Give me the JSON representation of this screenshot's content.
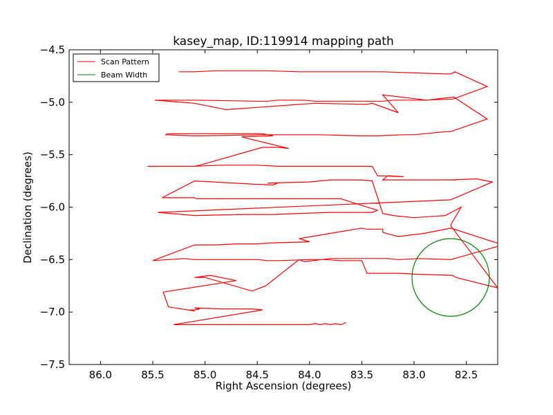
{
  "chart_data": {
    "type": "line",
    "title": "kasey_map, ID:119914 mapping path",
    "xlabel": "Right Ascension (degrees)",
    "ylabel": "Declination (degrees)",
    "xlim": [
      86.3,
      82.2
    ],
    "ylim": [
      -7.5,
      -4.5
    ],
    "x_inverted": true,
    "xticks": [
      86.0,
      85.5,
      85.0,
      84.5,
      84.0,
      83.5,
      83.0,
      82.5
    ],
    "xtick_labels": [
      "86.0",
      "85.5",
      "85.0",
      "84.5",
      "84.0",
      "83.5",
      "83.0",
      "82.5"
    ],
    "yticks": [
      -7.5,
      -7.0,
      -6.5,
      -6.0,
      -5.5,
      -5.0,
      -4.5
    ],
    "ytick_labels": [
      "−7.5",
      "−7.0",
      "−6.5",
      "−6.0",
      "−5.5",
      "−5.0",
      "−4.5"
    ],
    "grid": false,
    "legend_position": "top-left",
    "series": [
      {
        "name": "Scan Pattern",
        "color": "#ff0000",
        "x": [
          83.65,
          83.7,
          83.75,
          83.8,
          83.85,
          83.9,
          83.95,
          84.0,
          84.3,
          84.5,
          84.85,
          85.05,
          85.3,
          84.45,
          84.55,
          84.85,
          85.1,
          85.05,
          85.1,
          85.15,
          85.1,
          85.35,
          85.4,
          84.7,
          84.95,
          85.1,
          85.0,
          84.55,
          84.42,
          84.1,
          84.05,
          83.8,
          83.65,
          83.35,
          83.25,
          83.15,
          82.95,
          82.65,
          82.15,
          82.65,
          82.9,
          83.15,
          83.3,
          83.3,
          83.45,
          83.5,
          84.1,
          84.0,
          84.35,
          84.5,
          84.7,
          84.9,
          85.1,
          85.5,
          85.2,
          85.1,
          84.5,
          84.4,
          84.3,
          84.0,
          83.85,
          83.7,
          83.5,
          83.45,
          83.3,
          83.2,
          83.15,
          82.95,
          82.63,
          82.6,
          82.2,
          82.64,
          82.65,
          82.55,
          82.7,
          83.0,
          83.2,
          83.3,
          83.4,
          83.5,
          83.8,
          84.0,
          84.4,
          84.3,
          84.35,
          84.55,
          85.1,
          85.41,
          85.1,
          85.08,
          84.0,
          83.7,
          83.35,
          83.4,
          83.45,
          83.8,
          84.1,
          84.35,
          84.7,
          84.65,
          85.1,
          85.45,
          82.65,
          82.25,
          82.4,
          82.65,
          82.7,
          82.6,
          82.7,
          83.3,
          83.25,
          83.1,
          83.35,
          83.4,
          83.5,
          84.0,
          84.3,
          84.5,
          84.7,
          84.85,
          85.1,
          85.55,
          85.1,
          85.05,
          84.45,
          84.3,
          84.2,
          84.65,
          84.35,
          84.4,
          84.45,
          85.05,
          85.1,
          85.38,
          85.35,
          85.1,
          84.9,
          84.45,
          84.4,
          84.3,
          84.05,
          83.9,
          83.5,
          83.45,
          83.35,
          83.1,
          83.0,
          82.7,
          82.65,
          82.3,
          82.62,
          82.88,
          83.3,
          83.15,
          83.4,
          83.45,
          83.95,
          84.8,
          84.85,
          85.1,
          85.48,
          85.1,
          84.5,
          84.55,
          84.4,
          84.3,
          84.05,
          83.95,
          83.6,
          83.55,
          83.35,
          83.3,
          83.2,
          83.0,
          82.93,
          82.63,
          82.3,
          82.61,
          82.65,
          82.7,
          83.3,
          83.35,
          84.1,
          84.4,
          84.55,
          84.9,
          85.1,
          85.25
        ],
        "y": [
          -7.1,
          -7.12,
          -7.11,
          -7.12,
          -7.11,
          -7.12,
          -7.11,
          -7.12,
          -7.12,
          -7.12,
          -7.12,
          -7.12,
          -7.12,
          -6.98,
          -6.97,
          -6.97,
          -6.96,
          -6.97,
          -6.98,
          -6.98,
          -6.99,
          -6.95,
          -6.81,
          -6.7,
          -6.65,
          -6.67,
          -6.67,
          -6.8,
          -6.75,
          -6.5,
          -6.52,
          -6.49,
          -6.49,
          -6.49,
          -6.49,
          -6.5,
          -6.49,
          -6.5,
          -6.36,
          -6.2,
          -6.25,
          -6.28,
          -6.24,
          -6.21,
          -6.21,
          -6.2,
          -6.3,
          -6.33,
          -6.34,
          -6.35,
          -6.35,
          -6.36,
          -6.36,
          -6.51,
          -6.49,
          -6.5,
          -6.5,
          -6.51,
          -6.51,
          -6.5,
          -6.5,
          -6.51,
          -6.51,
          -6.63,
          -6.63,
          -6.63,
          -6.63,
          -6.64,
          -6.65,
          -6.67,
          -6.77,
          -6.19,
          -6.17,
          -6.0,
          -6.08,
          -6.1,
          -6.08,
          -6.06,
          -5.75,
          -5.74,
          -5.74,
          -5.76,
          -5.77,
          -5.77,
          -5.79,
          -5.78,
          -5.75,
          -5.91,
          -5.91,
          -5.92,
          -5.92,
          -5.92,
          -6.03,
          -6.05,
          -6.05,
          -6.05,
          -6.06,
          -6.07,
          -6.07,
          -6.07,
          -6.08,
          -6.05,
          -5.93,
          -5.76,
          -5.73,
          -5.74,
          -5.74,
          -5.74,
          -5.74,
          -5.74,
          -5.7,
          -5.71,
          -5.7,
          -5.61,
          -5.61,
          -5.61,
          -5.61,
          -5.6,
          -5.6,
          -5.6,
          -5.61,
          -5.61,
          -5.61,
          -5.6,
          -5.43,
          -5.43,
          -5.44,
          -5.33,
          -5.32,
          -5.31,
          -5.31,
          -5.32,
          -5.32,
          -5.31,
          -5.3,
          -5.3,
          -5.3,
          -5.3,
          -5.31,
          -5.31,
          -5.31,
          -5.31,
          -5.32,
          -5.32,
          -5.32,
          -5.31,
          -5.31,
          -5.28,
          -5.28,
          -5.16,
          -4.95,
          -4.98,
          -4.93,
          -5.1,
          -5.01,
          -5.02,
          -5.01,
          -5.07,
          -5.06,
          -5.01,
          -4.98,
          -4.98,
          -4.99,
          -4.99,
          -4.99,
          -4.98,
          -4.98,
          -4.99,
          -4.99,
          -4.99,
          -4.99,
          -4.99,
          -4.98,
          -4.98,
          -4.98,
          -4.97,
          -4.85,
          -4.71,
          -4.73,
          -4.73,
          -4.71,
          -4.71,
          -4.71,
          -4.7,
          -4.7,
          -4.7,
          -4.71,
          -4.71
        ]
      },
      {
        "name": "Beam Width",
        "color": "#008000",
        "shape": "circle",
        "center_x": 82.65,
        "center_y": -6.67,
        "radius": 0.37
      }
    ]
  }
}
